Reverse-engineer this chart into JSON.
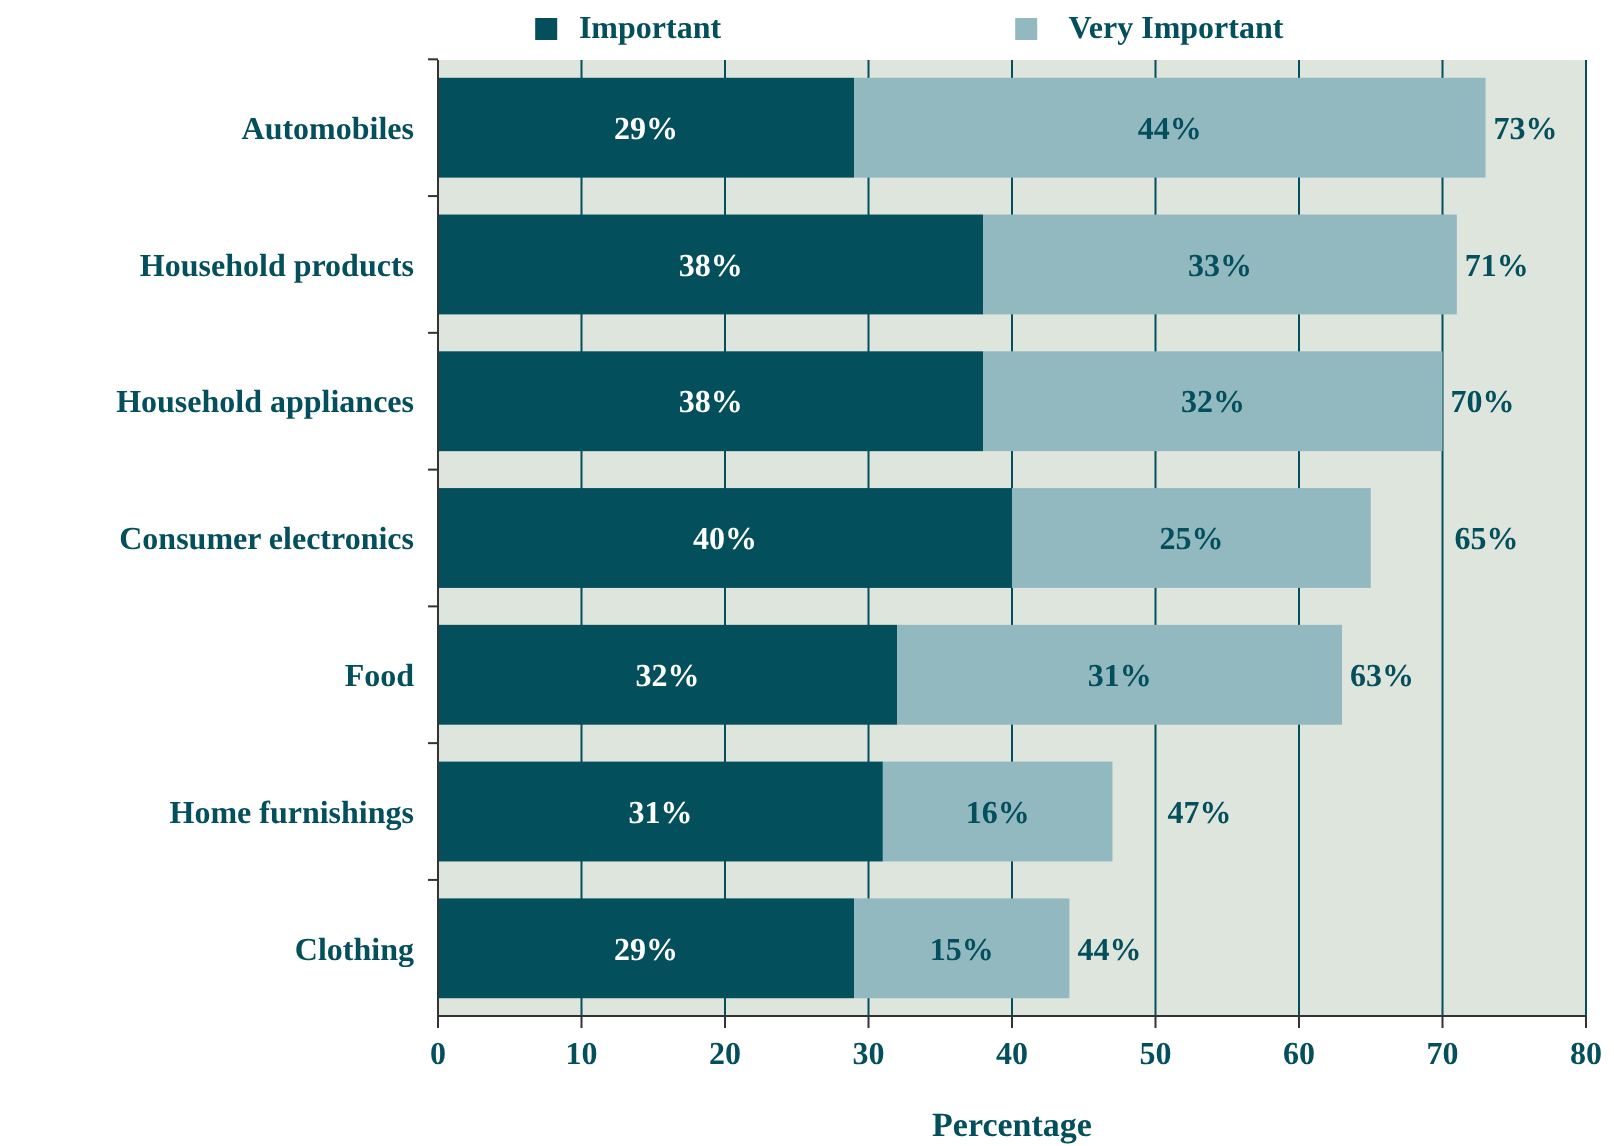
{
  "chart_data": {
    "type": "bar",
    "orientation": "horizontal",
    "stacked": true,
    "xlabel": "Percentage",
    "categories": [
      "Automobiles",
      "Household products",
      "Household appliances",
      "Consumer electronics",
      "Food",
      "Home furnishings",
      "Clothing"
    ],
    "series": [
      {
        "name": "Important",
        "color": "#034f5c",
        "values": [
          29,
          38,
          38,
          40,
          32,
          31,
          29
        ],
        "value_labels": [
          "29%",
          "38%",
          "38%",
          "40%",
          "32%",
          "31%",
          "29%"
        ]
      },
      {
        "name": "Very Important",
        "color": "#93b9c0",
        "values": [
          44,
          33,
          32,
          25,
          31,
          16,
          15
        ],
        "value_labels": [
          "44%",
          "33%",
          "32%",
          "25%",
          "31%",
          "16%",
          "15%"
        ]
      }
    ],
    "totals": [
      "73%",
      "71%",
      "70%",
      "65%",
      "63%",
      "47%",
      "44%"
    ],
    "xlim": [
      0,
      80
    ],
    "xticks": [
      0,
      10,
      20,
      30,
      40,
      50,
      60,
      70,
      80
    ],
    "grid": "x",
    "legend": "top"
  }
}
